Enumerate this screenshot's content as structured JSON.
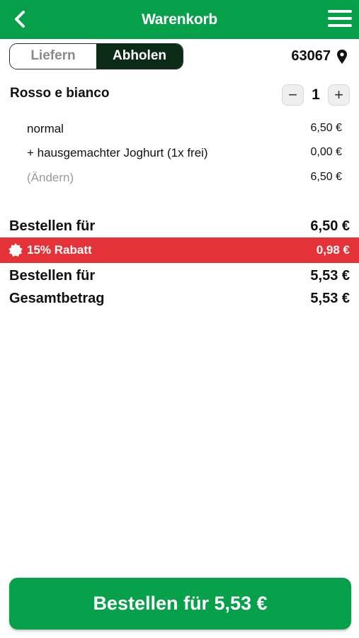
{
  "header": {
    "title": "Warenkorb"
  },
  "mode_toggle": {
    "deliver_label": "Liefern",
    "pickup_label": "Abholen",
    "selected": "Abholen"
  },
  "location": {
    "postal_code": "63067"
  },
  "cart_item": {
    "name": "Rosso e bianco",
    "quantity": "1",
    "minus": "−",
    "plus": "+",
    "options": [
      {
        "label": "normal",
        "price": "6,50 €"
      },
      {
        "label": "+ hausgemachter Joghurt (1x frei)",
        "price": "0,00 €"
      },
      {
        "label": "(Ändern)",
        "price": "6,50 €"
      }
    ]
  },
  "summary": {
    "subtotal_label": "Bestellen für",
    "subtotal_value": "6,50 €",
    "discount_label": "15% Rabatt",
    "discount_value": "0,98 €",
    "discounted_label": "Bestellen für",
    "discounted_value": "5,53 €",
    "total_label": "Gesamtbetrag",
    "total_value": "5,53 €"
  },
  "order_button": {
    "label": "Bestellen für 5,53 €"
  },
  "colors": {
    "brand_green": "#06a04b",
    "toggle_dark": "#0c2b17",
    "discount_red": "#e53238"
  }
}
